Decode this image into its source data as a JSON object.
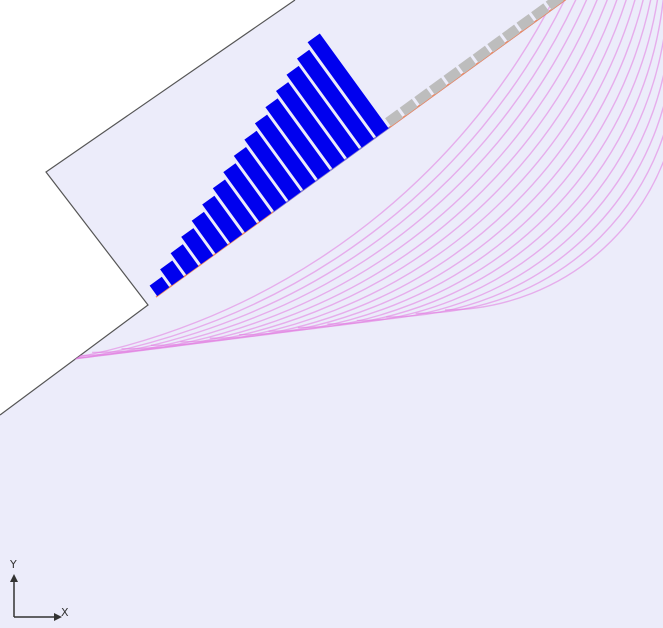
{
  "colors": {
    "background": "#ffffff",
    "medium": "#ececfa",
    "outline": "#555555",
    "active_element": "#0000ee",
    "inactive_element": "#bdbdbd",
    "edge_ray": "#ef8a5e",
    "center_ray": "#7b7bdc",
    "wavefront": "#e27ae0",
    "axis": "#333333"
  },
  "probe": {
    "active_elements": 16,
    "inactive_elements": 12
  },
  "wavefronts": {
    "count": 18
  },
  "axes": {
    "x_label": "X",
    "y_label": "Y"
  }
}
